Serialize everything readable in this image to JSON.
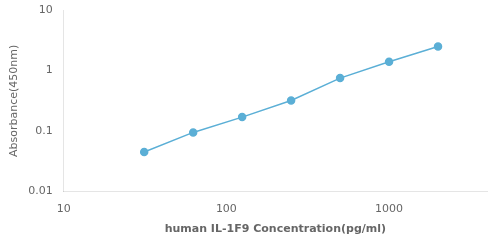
{
  "chart_data": {
    "type": "line",
    "x": [
      31.25,
      62.5,
      125,
      250,
      500,
      1000,
      2000
    ],
    "values": [
      0.045,
      0.095,
      0.17,
      0.32,
      0.75,
      1.4,
      2.5
    ],
    "color": "#5bafd6",
    "marker": "circle",
    "xlabel": "human IL-1F9 Concentration(pg/ml)",
    "ylabel": "Absorbance(450nm)",
    "xlim": [
      10,
      4000
    ],
    "ylim": [
      0.01,
      10
    ],
    "xticks": [
      10,
      100,
      1000
    ],
    "yticks": [
      0.01,
      0.1,
      1,
      10
    ],
    "log": true,
    "grid": false
  }
}
